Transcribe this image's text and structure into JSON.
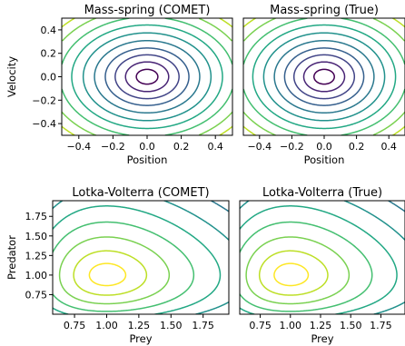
{
  "chart_data": [
    {
      "type": "contour",
      "title": "Mass-spring (COMET)",
      "xlabel": "Position",
      "ylabel": "Velocity",
      "xlim": [
        -0.5,
        0.5
      ],
      "ylim": [
        -0.5,
        0.5
      ],
      "x_ticks": [
        -0.4,
        -0.2,
        0.0,
        0.2,
        0.4
      ],
      "x_tick_labels": [
        "−0.4",
        "−0.2",
        "0.0",
        "0.2",
        "0.4"
      ],
      "y_ticks": [
        0.4,
        0.2,
        0.0,
        -0.2,
        -0.4
      ],
      "y_tick_labels": [
        "0.4",
        "0.2",
        "0.0",
        "−0.2",
        "−0.4"
      ],
      "function": "x^2 + y^2",
      "levels": [
        0.004,
        0.016,
        0.035,
        0.06,
        0.095,
        0.14,
        0.195,
        0.26,
        0.34,
        0.43
      ],
      "colormap": "viridis_r",
      "colors": [
        "#440154",
        "#482475",
        "#414487",
        "#355f8d",
        "#2a788e",
        "#21918c",
        "#22a884",
        "#44bf70",
        "#7ad151",
        "#bddf26"
      ]
    },
    {
      "type": "contour",
      "title": "Mass-spring (True)",
      "xlabel": "Position",
      "ylabel": "",
      "xlim": [
        -0.5,
        0.5
      ],
      "ylim": [
        -0.5,
        0.5
      ],
      "x_ticks": [
        -0.4,
        -0.2,
        0.0,
        0.2,
        0.4
      ],
      "x_tick_labels": [
        "−0.4",
        "−0.2",
        "0.0",
        "0.2",
        "0.4"
      ],
      "y_ticks": [],
      "y_tick_labels": [],
      "function": "x^2 + y^2",
      "levels": [
        0.004,
        0.016,
        0.035,
        0.06,
        0.095,
        0.14,
        0.195,
        0.26,
        0.34,
        0.43
      ],
      "colormap": "viridis_r",
      "colors": [
        "#440154",
        "#482475",
        "#414487",
        "#355f8d",
        "#2a788e",
        "#21918c",
        "#22a884",
        "#44bf70",
        "#7ad151",
        "#bddf26"
      ]
    },
    {
      "type": "contour",
      "title": "Lotka-Volterra (COMET)",
      "xlabel": "Prey",
      "ylabel": "Predator",
      "xlim": [
        0.58,
        1.95
      ],
      "ylim": [
        0.5,
        1.95
      ],
      "x_ticks": [
        0.75,
        1.0,
        1.25,
        1.5,
        1.75
      ],
      "x_tick_labels": [
        "0.75",
        "1.00",
        "1.25",
        "1.50",
        "1.75"
      ],
      "y_ticks": [
        1.75,
        1.5,
        1.25,
        1.0,
        0.75
      ],
      "y_tick_labels": [
        "1.75",
        "1.50",
        "1.25",
        "1.00",
        "0.75"
      ],
      "function": "x - ln(x) + y - ln(y)",
      "levels": [
        2.01,
        2.04,
        2.09,
        2.16,
        2.25,
        2.36,
        2.5,
        2.66,
        2.85
      ],
      "colormap": "viridis",
      "colors": [
        "#fde725",
        "#bddf26",
        "#7ad151",
        "#44bf70",
        "#22a884",
        "#21918c",
        "#2a788e",
        "#355f8d",
        "#414487"
      ]
    },
    {
      "type": "contour",
      "title": "Lotka-Volterra (True)",
      "xlabel": "Prey",
      "ylabel": "",
      "xlim": [
        0.58,
        1.95
      ],
      "ylim": [
        0.5,
        1.95
      ],
      "x_ticks": [
        0.75,
        1.0,
        1.25,
        1.5,
        1.75
      ],
      "x_tick_labels": [
        "0.75",
        "1.00",
        "1.25",
        "1.50",
        "1.75"
      ],
      "y_ticks": [],
      "y_tick_labels": [],
      "function": "x - ln(x) + y - ln(y)",
      "levels": [
        2.01,
        2.04,
        2.09,
        2.16,
        2.25,
        2.36,
        2.5,
        2.66,
        2.85
      ],
      "colormap": "viridis",
      "colors": [
        "#fde725",
        "#bddf26",
        "#7ad151",
        "#44bf70",
        "#22a884",
        "#21918c",
        "#2a788e",
        "#355f8d",
        "#414487"
      ]
    }
  ]
}
